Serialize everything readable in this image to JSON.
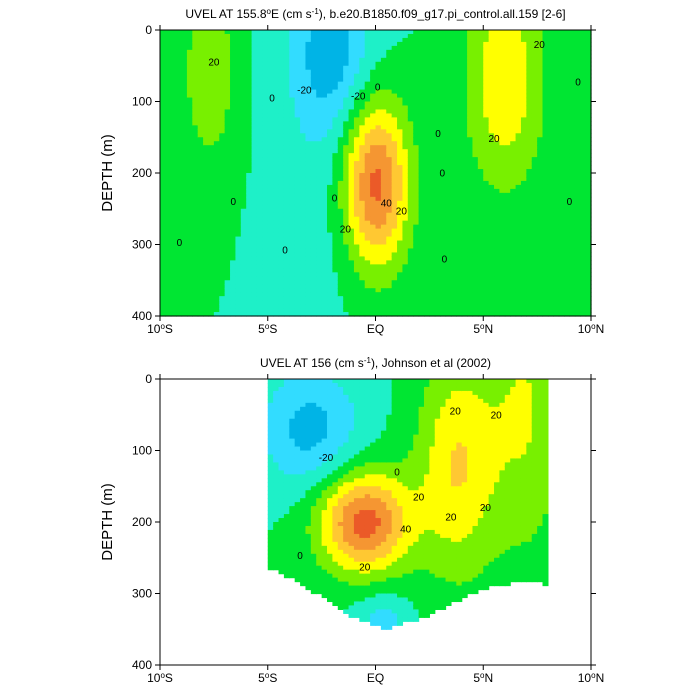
{
  "chart_data": [
    {
      "type": "contour",
      "title": "UVEL AT 155.8°E (cm s⁻¹), b.e20.B1850.f09_g17.pi_control.all.159 [2-6]",
      "title_parts": [
        "UVEL AT 155.8",
        "o",
        "E (cm s",
        "-1",
        "), b.e20.B1850.f09_g17.pi_control.all.159 [2-6]"
      ],
      "xlabel": "",
      "ylabel": "DEPTH (m)",
      "xlim": [
        -10,
        10
      ],
      "ylim": [
        400,
        0
      ],
      "xticks": [
        {
          "v": -10,
          "label": "10",
          "sup": "o",
          "suffix": "S"
        },
        {
          "v": -5,
          "label": "5",
          "sup": "o",
          "suffix": "S"
        },
        {
          "v": 0,
          "label": "EQ",
          "sup": "",
          "suffix": ""
        },
        {
          "v": 5,
          "label": "5",
          "sup": "o",
          "suffix": "N"
        },
        {
          "v": 10,
          "label": "10",
          "sup": "o",
          "suffix": "N"
        }
      ],
      "yticks": [
        0,
        100,
        200,
        300,
        400
      ],
      "contour_levels": [
        -30,
        -20,
        -10,
        0,
        10,
        20,
        30,
        40,
        50
      ],
      "max_speed": 60,
      "data_mask": "full",
      "features": [
        {
          "kind": "jet",
          "x": 0,
          "depth": 215,
          "sx": 1.1,
          "sy": 85,
          "amp": 56
        },
        {
          "kind": "jet",
          "x": 6.0,
          "depth": 70,
          "sx": 1.3,
          "sy": 110,
          "amp": 28
        },
        {
          "kind": "jet",
          "x": -7.7,
          "depth": 60,
          "sx": 0.9,
          "sy": 95,
          "amp": 18
        },
        {
          "kind": "jet",
          "x": -2.1,
          "depth": 30,
          "sx": 1.3,
          "sy": 75,
          "amp": -22
        },
        {
          "kind": "jet",
          "x": -2.0,
          "depth": 170,
          "sx": 1.8,
          "sy": 160,
          "amp": -8
        }
      ],
      "contour_labels": [
        {
          "x": -7.5,
          "depth": 45,
          "text": "20"
        },
        {
          "x": -4.8,
          "depth": 95,
          "text": "0"
        },
        {
          "x": -6.6,
          "depth": 240,
          "text": "0"
        },
        {
          "x": -9.1,
          "depth": 297,
          "text": "0"
        },
        {
          "x": -4.2,
          "depth": 308,
          "text": "0"
        },
        {
          "x": -3.3,
          "depth": 84,
          "text": "-20"
        },
        {
          "x": -0.8,
          "depth": 92,
          "text": "-20"
        },
        {
          "x": 0.1,
          "depth": 80,
          "text": "0"
        },
        {
          "x": -1.9,
          "depth": 235,
          "text": "0"
        },
        {
          "x": 0.5,
          "depth": 242,
          "text": "40"
        },
        {
          "x": 1.2,
          "depth": 253,
          "text": "20"
        },
        {
          "x": -1.4,
          "depth": 278,
          "text": "20"
        },
        {
          "x": 3.1,
          "depth": 200,
          "text": "0"
        },
        {
          "x": 3.2,
          "depth": 320,
          "text": "0"
        },
        {
          "x": 2.9,
          "depth": 145,
          "text": "0"
        },
        {
          "x": 7.6,
          "depth": 20,
          "text": "20"
        },
        {
          "x": 5.5,
          "depth": 152,
          "text": "20"
        },
        {
          "x": 9.4,
          "depth": 73,
          "text": "0"
        },
        {
          "x": 9.0,
          "depth": 240,
          "text": "0"
        }
      ]
    },
    {
      "type": "contour",
      "title": "UVEL AT 156 (cm s⁻¹), Johnson et al (2002)",
      "title_parts": [
        "UVEL AT 156 (cm s",
        "-1",
        "), Johnson et al (2002)",
        "",
        ""
      ],
      "xlabel": "",
      "ylabel": "DEPTH (m)",
      "xlim": [
        -10,
        10
      ],
      "ylim": [
        400,
        0
      ],
      "xticks": [
        {
          "v": -10,
          "label": "10",
          "sup": "o",
          "suffix": "S"
        },
        {
          "v": -5,
          "label": "5",
          "sup": "o",
          "suffix": "S"
        },
        {
          "v": 0,
          "label": "EQ",
          "sup": "",
          "suffix": ""
        },
        {
          "v": 5,
          "label": "5",
          "sup": "o",
          "suffix": "N"
        },
        {
          "v": 10,
          "label": "10",
          "sup": "o",
          "suffix": "N"
        }
      ],
      "yticks": [
        0,
        100,
        200,
        300,
        400
      ],
      "contour_levels": [
        -30,
        -20,
        -10,
        0,
        10,
        20,
        30,
        40,
        50
      ],
      "max_speed": 60,
      "data_mask": "observations",
      "features": [
        {
          "kind": "jet",
          "x": -0.5,
          "depth": 200,
          "sx": 1.5,
          "sy": 50,
          "amp": 55
        },
        {
          "kind": "jet",
          "x": 3.8,
          "depth": 120,
          "sx": 1.3,
          "sy": 110,
          "amp": 30
        },
        {
          "kind": "jet",
          "x": -3.0,
          "depth": 70,
          "sx": 1.6,
          "sy": 60,
          "amp": -24
        },
        {
          "kind": "jet",
          "x": 7.0,
          "depth": 40,
          "sx": 1.3,
          "sy": 150,
          "amp": 20
        },
        {
          "kind": "jet",
          "x": 0.3,
          "depth": 340,
          "sx": 0.9,
          "sy": 30,
          "amp": -15
        }
      ],
      "contour_labels": [
        {
          "x": -2.3,
          "depth": 110,
          "text": "-20"
        },
        {
          "x": 1.0,
          "depth": 130,
          "text": "0"
        },
        {
          "x": 2.0,
          "depth": 165,
          "text": "20"
        },
        {
          "x": 3.7,
          "depth": 45,
          "text": "20"
        },
        {
          "x": 5.6,
          "depth": 50,
          "text": "20"
        },
        {
          "x": 1.4,
          "depth": 210,
          "text": "40"
        },
        {
          "x": 3.5,
          "depth": 193,
          "text": "20"
        },
        {
          "x": 5.1,
          "depth": 180,
          "text": "20"
        },
        {
          "x": -0.5,
          "depth": 263,
          "text": "20"
        },
        {
          "x": -3.5,
          "depth": 247,
          "text": "0"
        }
      ]
    }
  ]
}
